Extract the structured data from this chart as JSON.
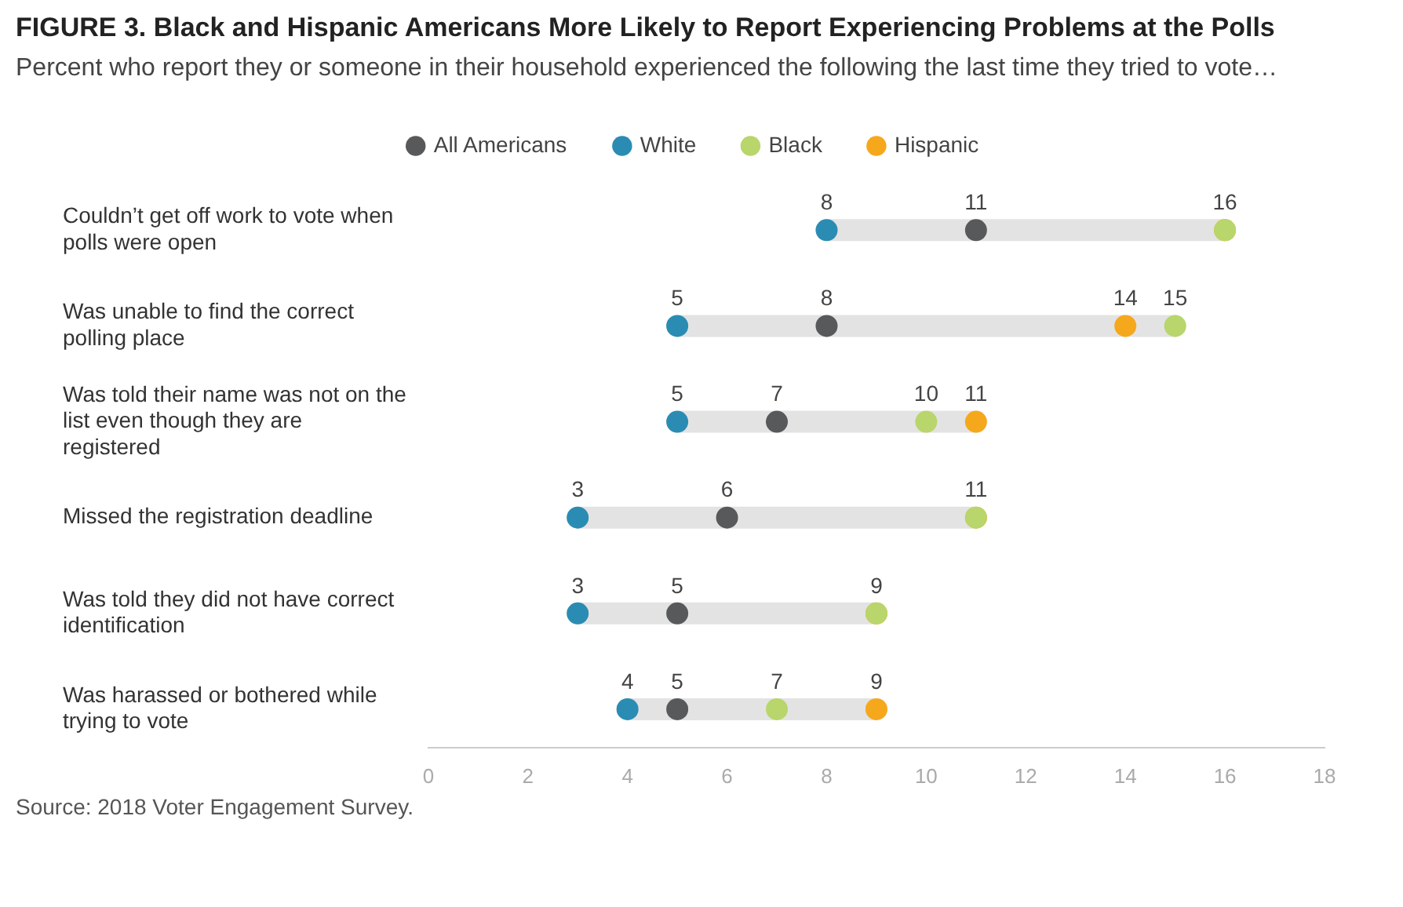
{
  "chart_data": {
    "type": "scatter",
    "orientation": "horizontal",
    "title": "FIGURE 3. Black and Hispanic Americans More Likely to Report Experiencing Problems at the Polls",
    "subtitle": "Percent who report they or someone in their household experienced the following the last time they tried to vote…",
    "categories": [
      "Couldn’t get off work to vote when polls were open",
      "Was unable to find the correct polling place",
      "Was told their name was not on the list even though they are registered",
      "Missed the registration deadline",
      "Was told they did not have correct identification",
      "Was harassed or bothered while trying to vote"
    ],
    "series": [
      {
        "name": "All Americans",
        "color": "#58595b",
        "values": [
          11,
          8,
          7,
          6,
          5,
          5
        ],
        "value_labels": [
          "11",
          "8",
          "7",
          "6",
          "5",
          "5"
        ]
      },
      {
        "name": "White",
        "color": "#2b8cb3",
        "values": [
          8,
          5,
          5,
          3,
          3,
          4
        ],
        "value_labels": [
          "8",
          "5",
          "5",
          "3",
          "3",
          "4"
        ]
      },
      {
        "name": "Black",
        "color": "#b8d66b",
        "values": [
          16,
          15,
          10,
          11,
          9,
          7
        ],
        "value_labels": [
          null,
          "15",
          "10",
          null,
          null,
          "7"
        ]
      },
      {
        "name": "Hispanic",
        "color": "#f6a81c",
        "values": [
          16,
          14,
          11,
          11,
          9,
          9
        ],
        "value_labels": [
          "16",
          "14",
          "11",
          "11",
          "9",
          "9"
        ]
      }
    ],
    "xlim": [
      0,
      18
    ],
    "xticks": [
      0,
      2,
      4,
      6,
      8,
      10,
      12,
      14,
      16,
      18
    ],
    "grid": false,
    "legend": "top",
    "marker": "circle",
    "annotations": [
      "Source: 2018 Voter Engagement Survey."
    ]
  }
}
